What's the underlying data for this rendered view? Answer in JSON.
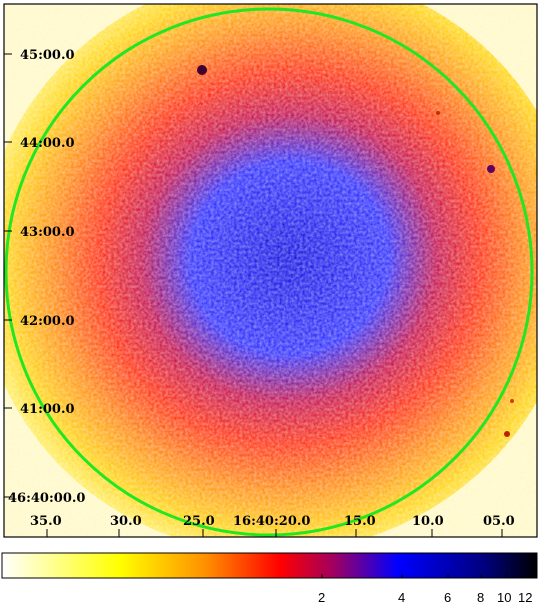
{
  "image": {
    "ra_labels": [
      "35.0",
      "30.0",
      "25.0",
      "16:40:20.0",
      "15.0",
      "10.0",
      "05.0"
    ],
    "dec_labels": [
      "45:00.0",
      "44:00.0",
      "43:00.0",
      "42:00.0",
      "41:00.0",
      "46:40:00.0"
    ],
    "region_color": "#22e622"
  },
  "colorbar": {
    "tick_labels": [
      "2",
      "4",
      "6",
      "8",
      "10",
      "12"
    ],
    "colormap": [
      "#ffffff",
      "#ffff00",
      "#ff8800",
      "#ff0000",
      "#0000ff",
      "#000000"
    ]
  }
}
